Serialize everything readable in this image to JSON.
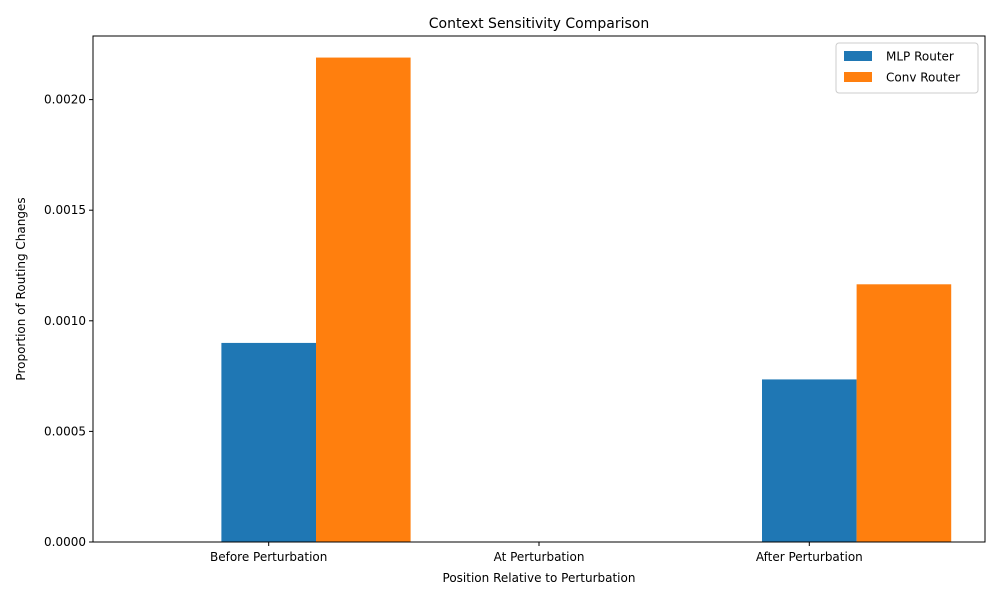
{
  "chart_data": {
    "type": "bar",
    "title": "Context Sensitivity Comparison",
    "xlabel": "Position Relative to Perturbation",
    "ylabel": "Proportion of Routing Changes",
    "categories": [
      "Before Perturbation",
      "At Perturbation",
      "After Perturbation"
    ],
    "series": [
      {
        "name": "MLP Router",
        "color": "#1f77b4",
        "values": [
          0.0009,
          0.0,
          0.000735
        ]
      },
      {
        "name": "Conv Router",
        "color": "#ff7f0e",
        "values": [
          0.00219,
          0.0,
          0.001165
        ]
      }
    ],
    "ylim": [
      0,
      0.0022875
    ],
    "yticks": [
      "0.0000",
      "0.0005",
      "0.0010",
      "0.0015",
      "0.0020"
    ],
    "ytick_values": [
      0,
      0.0005,
      0.001,
      0.0015,
      0.002
    ],
    "grid": false,
    "legend_position": "upper right"
  }
}
